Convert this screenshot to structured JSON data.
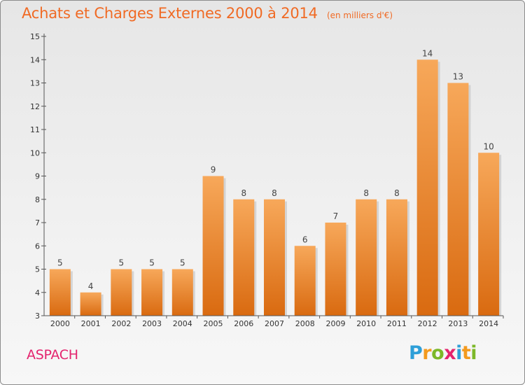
{
  "header": {
    "title": "Achats et Charges Externes 2000 à 2014",
    "unit": "(en milliers d'€)"
  },
  "footer": {
    "town": "ASPACH",
    "logo": {
      "letters": [
        "P",
        "r",
        "o",
        "x",
        "i",
        "t",
        "i"
      ],
      "colors": [
        "#2e9fd8",
        "#f39a1e",
        "#7cb828",
        "#e4246e",
        "#2e9fd8",
        "#f39a1e",
        "#7cb828"
      ]
    }
  },
  "colors": {
    "bar_top": "#f7a85a",
    "bar_bottom": "#d96a10",
    "bar_shadow": "#c7c7c7",
    "title": "#f06a24",
    "town": "#e4246e",
    "axis": "#555555"
  },
  "chart_data": {
    "type": "bar",
    "categories": [
      "2000",
      "2001",
      "2002",
      "2003",
      "2004",
      "2005",
      "2006",
      "2007",
      "2008",
      "2009",
      "2010",
      "2011",
      "2012",
      "2013",
      "2014"
    ],
    "values": [
      5,
      4,
      5,
      5,
      5,
      9,
      8,
      8,
      6,
      7,
      8,
      8,
      14,
      13,
      10
    ],
    "data_labels": [
      "5",
      "4",
      "5",
      "5",
      "5",
      "9",
      "8",
      "8",
      "6",
      "7",
      "8",
      "8",
      "14",
      "13",
      "10"
    ],
    "y_ticks": [
      3,
      4,
      5,
      6,
      7,
      8,
      9,
      10,
      11,
      12,
      13,
      14,
      15
    ],
    "ylim": [
      3,
      15
    ],
    "grid": false,
    "xlabel": "",
    "ylabel": ""
  }
}
